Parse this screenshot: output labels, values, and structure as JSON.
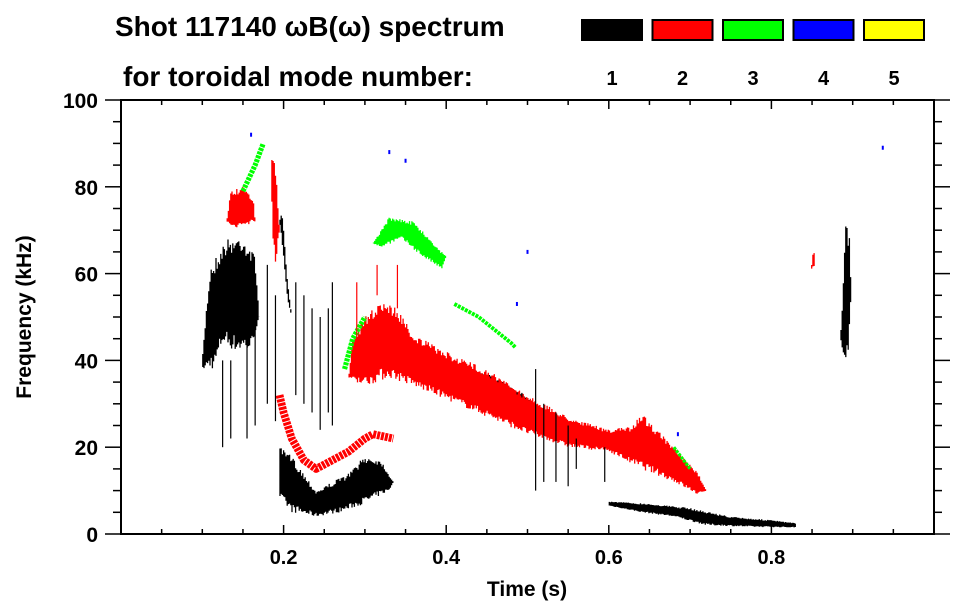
{
  "chart_data": {
    "type": "heatmap",
    "title_line1": "Shot 117140 ωB(ω) spectrum",
    "title_line2": "for toroidal mode number:",
    "xlabel": "Time (s)",
    "ylabel": "Frequency (kHz)",
    "xlim": [
      0,
      1.0
    ],
    "ylim": [
      0,
      100
    ],
    "x_major_ticks": [
      0.2,
      0.4,
      0.6,
      0.8
    ],
    "x_tick_labels": [
      "0.2",
      "0.4",
      "0.6",
      "0.8"
    ],
    "x_minor_step": 0.05,
    "y_major_ticks": [
      0,
      20,
      40,
      60,
      80,
      100
    ],
    "y_tick_labels": [
      "0",
      "20",
      "40",
      "60",
      "80",
      "100"
    ],
    "y_minor_step": 5,
    "legend": [
      {
        "mode": "1",
        "color": "#000000"
      },
      {
        "mode": "2",
        "color": "#ff0000"
      },
      {
        "mode": "3",
        "color": "#00ff00"
      },
      {
        "mode": "4",
        "color": "#0000ff"
      },
      {
        "mode": "5",
        "color": "#ffff00"
      }
    ],
    "legend_placement": "top-right",
    "regions": [
      {
        "mode": 1,
        "points": [
          [
            0.1,
            40
          ],
          [
            0.105,
            52
          ],
          [
            0.11,
            62
          ],
          [
            0.13,
            68
          ],
          [
            0.15,
            69
          ],
          [
            0.165,
            64
          ],
          [
            0.17,
            50
          ],
          [
            0.16,
            42
          ],
          [
            0.14,
            42
          ],
          [
            0.125,
            44
          ],
          [
            0.115,
            38
          ],
          [
            0.1,
            38
          ]
        ]
      },
      {
        "mode": 1,
        "points": [
          [
            0.195,
            72
          ],
          [
            0.2,
            64
          ],
          [
            0.205,
            54
          ],
          [
            0.21,
            50
          ],
          [
            0.204,
            60
          ],
          [
            0.198,
            75
          ]
        ]
      },
      {
        "mode": 1,
        "points": [
          [
            0.195,
            20
          ],
          [
            0.21,
            18
          ],
          [
            0.24,
            10
          ],
          [
            0.26,
            12
          ],
          [
            0.28,
            14
          ],
          [
            0.3,
            18
          ],
          [
            0.32,
            17
          ],
          [
            0.335,
            12
          ],
          [
            0.33,
            10
          ],
          [
            0.3,
            7
          ],
          [
            0.27,
            5
          ],
          [
            0.24,
            4
          ],
          [
            0.21,
            5
          ],
          [
            0.195,
            8
          ]
        ]
      },
      {
        "mode": 1,
        "points": [
          [
            0.37,
            42
          ],
          [
            0.4,
            40
          ],
          [
            0.45,
            37
          ],
          [
            0.49,
            33
          ],
          [
            0.51,
            30
          ],
          [
            0.51,
            25
          ],
          [
            0.5,
            27
          ],
          [
            0.47,
            31
          ],
          [
            0.43,
            35
          ],
          [
            0.39,
            38
          ],
          [
            0.37,
            40
          ]
        ]
      },
      {
        "mode": 1,
        "points": [
          [
            0.6,
            7.5
          ],
          [
            0.65,
            7
          ],
          [
            0.7,
            6
          ],
          [
            0.75,
            4
          ],
          [
            0.8,
            3.2
          ],
          [
            0.83,
            2.5
          ],
          [
            0.83,
            1.5
          ],
          [
            0.78,
            1.6
          ],
          [
            0.72,
            2
          ],
          [
            0.68,
            4
          ],
          [
            0.64,
            5
          ],
          [
            0.6,
            6.5
          ]
        ]
      },
      {
        "mode": 1,
        "points": [
          [
            0.885,
            45
          ],
          [
            0.889,
            60
          ],
          [
            0.891,
            72
          ],
          [
            0.896,
            70
          ],
          [
            0.898,
            55
          ],
          [
            0.895,
            42
          ],
          [
            0.89,
            40
          ]
        ]
      },
      {
        "mode": 2,
        "points": [
          [
            0.13,
            72
          ],
          [
            0.135,
            79
          ],
          [
            0.15,
            80
          ],
          [
            0.163,
            77
          ],
          [
            0.165,
            72
          ],
          [
            0.14,
            70
          ]
        ]
      },
      {
        "mode": 2,
        "points": [
          [
            0.185,
            87
          ],
          [
            0.19,
            85
          ],
          [
            0.195,
            70
          ],
          [
            0.19,
            62
          ],
          [
            0.186,
            70
          ]
        ]
      },
      {
        "mode": 2,
        "points": [
          [
            0.28,
            36
          ],
          [
            0.285,
            45
          ],
          [
            0.3,
            50
          ],
          [
            0.32,
            54
          ],
          [
            0.34,
            52
          ],
          [
            0.36,
            46
          ],
          [
            0.4,
            42
          ],
          [
            0.45,
            38
          ],
          [
            0.5,
            32
          ],
          [
            0.55,
            27
          ],
          [
            0.6,
            24
          ],
          [
            0.63,
            25
          ],
          [
            0.64,
            28
          ],
          [
            0.66,
            24
          ],
          [
            0.68,
            20
          ],
          [
            0.71,
            14
          ],
          [
            0.72,
            10
          ],
          [
            0.71,
            9
          ],
          [
            0.68,
            12
          ],
          [
            0.64,
            15
          ],
          [
            0.6,
            19
          ],
          [
            0.55,
            20
          ],
          [
            0.5,
            23
          ],
          [
            0.45,
            27
          ],
          [
            0.4,
            31
          ],
          [
            0.36,
            34
          ],
          [
            0.33,
            36
          ],
          [
            0.3,
            34
          ]
        ]
      },
      {
        "mode": 2,
        "points": [
          [
            0.849,
            61
          ],
          [
            0.852,
            66
          ],
          [
            0.854,
            62
          ]
        ]
      },
      {
        "mode": 3,
        "points": [
          [
            0.31,
            67
          ],
          [
            0.33,
            73
          ],
          [
            0.36,
            72
          ],
          [
            0.38,
            68
          ],
          [
            0.4,
            64
          ],
          [
            0.395,
            61
          ],
          [
            0.37,
            64
          ],
          [
            0.345,
            68
          ],
          [
            0.32,
            66
          ]
        ]
      }
    ],
    "lines": [
      {
        "mode": 2,
        "width_khz": 1.2,
        "points": [
          [
            0.195,
            32
          ],
          [
            0.2,
            28
          ],
          [
            0.21,
            22
          ],
          [
            0.225,
            17
          ],
          [
            0.24,
            15
          ],
          [
            0.26,
            17
          ],
          [
            0.28,
            19
          ],
          [
            0.3,
            22
          ],
          [
            0.31,
            23
          ],
          [
            0.335,
            22
          ]
        ]
      },
      {
        "mode": 3,
        "width_khz": 0.8,
        "points": [
          [
            0.15,
            79
          ],
          [
            0.165,
            85
          ],
          [
            0.175,
            90
          ]
        ]
      },
      {
        "mode": 3,
        "width_khz": 0.8,
        "points": [
          [
            0.275,
            38
          ],
          [
            0.285,
            45
          ],
          [
            0.3,
            50
          ]
        ]
      },
      {
        "mode": 3,
        "width_khz": 0.6,
        "points": [
          [
            0.41,
            53
          ],
          [
            0.44,
            50
          ],
          [
            0.48,
            44
          ],
          [
            0.485,
            43
          ]
        ]
      },
      {
        "mode": 3,
        "width_khz": 0.5,
        "points": [
          [
            0.68,
            20
          ],
          [
            0.7,
            15
          ]
        ]
      }
    ],
    "streaks": [
      {
        "mode": 1,
        "t": 0.125,
        "f": [
          20,
          40
        ]
      },
      {
        "mode": 1,
        "t": 0.135,
        "f": [
          22,
          40
        ]
      },
      {
        "mode": 1,
        "t": 0.155,
        "f": [
          22,
          60
        ]
      },
      {
        "mode": 1,
        "t": 0.165,
        "f": [
          25,
          58
        ]
      },
      {
        "mode": 1,
        "t": 0.18,
        "f": [
          30,
          62
        ]
      },
      {
        "mode": 1,
        "t": 0.19,
        "f": [
          26,
          55
        ]
      },
      {
        "mode": 1,
        "t": 0.215,
        "f": [
          32,
          58
        ]
      },
      {
        "mode": 1,
        "t": 0.225,
        "f": [
          30,
          55
        ]
      },
      {
        "mode": 1,
        "t": 0.235,
        "f": [
          28,
          52
        ]
      },
      {
        "mode": 1,
        "t": 0.245,
        "f": [
          24,
          50
        ]
      },
      {
        "mode": 1,
        "t": 0.255,
        "f": [
          28,
          52
        ]
      },
      {
        "mode": 1,
        "t": 0.26,
        "f": [
          25,
          58
        ]
      },
      {
        "mode": 1,
        "t": 0.51,
        "f": [
          10,
          38
        ]
      },
      {
        "mode": 1,
        "t": 0.52,
        "f": [
          12,
          30
        ]
      },
      {
        "mode": 1,
        "t": 0.535,
        "f": [
          12,
          28
        ]
      },
      {
        "mode": 1,
        "t": 0.55,
        "f": [
          11,
          25
        ]
      },
      {
        "mode": 1,
        "t": 0.56,
        "f": [
          15,
          22
        ]
      },
      {
        "mode": 1,
        "t": 0.595,
        "f": [
          12,
          20
        ]
      },
      {
        "mode": 2,
        "t": 0.29,
        "f": [
          45,
          58
        ]
      },
      {
        "mode": 2,
        "t": 0.315,
        "f": [
          55,
          62
        ]
      },
      {
        "mode": 2,
        "t": 0.34,
        "f": [
          52,
          62
        ]
      }
    ],
    "dots": [
      {
        "mode": 4,
        "t": 0.16,
        "f": 92
      },
      {
        "mode": 4,
        "t": 0.33,
        "f": 88
      },
      {
        "mode": 4,
        "t": 0.35,
        "f": 86
      },
      {
        "mode": 4,
        "t": 0.5,
        "f": 65
      },
      {
        "mode": 4,
        "t": 0.487,
        "f": 53
      },
      {
        "mode": 4,
        "t": 0.685,
        "f": 23
      },
      {
        "mode": 4,
        "t": 0.937,
        "f": 89
      }
    ]
  }
}
